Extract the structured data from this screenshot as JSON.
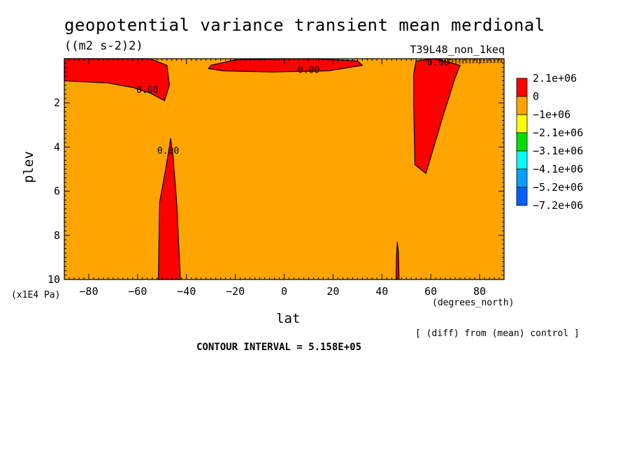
{
  "figure": {
    "title": "geopotential variance transient mean merdional",
    "units": "((m2 s-2)2)",
    "run": "T39L48_non_1keq",
    "x_unit": "(degrees_north)",
    "y_unit": "(x1E4 Pa)",
    "xlabel": "lat",
    "ylabel": "plev",
    "diff_note": "[ (diff) from (mean) control ]",
    "contour_interval": "CONTOUR INTERVAL = 5.158E+05"
  },
  "chart_data": {
    "type": "heatmap",
    "title": "geopotential variance transient mean merdional",
    "xlabel": "lat",
    "ylabel": "plev",
    "xlim": [
      -90,
      90
    ],
    "ylim": [
      0,
      10
    ],
    "y_inverted": true,
    "x_ticks": [
      -80,
      -60,
      -40,
      -20,
      0,
      20,
      40,
      60,
      80
    ],
    "x_tick_labels": [
      "−80",
      "−60",
      "−40",
      "−20",
      "0",
      "20",
      "40",
      "60",
      "80"
    ],
    "y_ticks": [
      2,
      4,
      6,
      8,
      10
    ],
    "y_tick_labels": [
      "2",
      "4",
      "6",
      "8",
      "10"
    ],
    "background_level": "0",
    "background_color": "#ffa500",
    "legend": [
      {
        "label": "2.1e+06",
        "color": "#ff0000"
      },
      {
        "label": "0",
        "color": "#ffa500"
      },
      {
        "label": "−1e+06",
        "color": "#ffff00"
      },
      {
        "label": "−2.1e+06",
        "color": "#00e000"
      },
      {
        "label": "−3.1e+06",
        "color": "#00ffff"
      },
      {
        "label": "−4.1e+06",
        "color": "#00a0ff"
      },
      {
        "label": "−5.2e+06",
        "color": "#0060ff"
      },
      {
        "label": "−7.2e+06",
        "color": ""
      }
    ],
    "legend_placement": "right",
    "regions": [
      {
        "name": "positive-region-upper-left",
        "color": "#ff0000",
        "points": [
          [
            -90,
            0.0
          ],
          [
            -55,
            0.0
          ],
          [
            -48,
            0.3
          ],
          [
            -47,
            1.2
          ],
          [
            -49,
            1.9
          ],
          [
            -55,
            1.55
          ],
          [
            -62,
            1.3
          ],
          [
            -72,
            1.1
          ],
          [
            -90,
            1.0
          ]
        ]
      },
      {
        "name": "positive-region-upper-center",
        "color": "#ff0000",
        "points": [
          [
            -30,
            0.3
          ],
          [
            -20,
            0.05
          ],
          [
            10,
            0.0
          ],
          [
            30,
            0.1
          ],
          [
            32,
            0.3
          ],
          [
            18,
            0.55
          ],
          [
            -5,
            0.6
          ],
          [
            -25,
            0.55
          ],
          [
            -31,
            0.45
          ]
        ]
      },
      {
        "name": "positive-region-upper-right",
        "color": "#ff0000",
        "points": [
          [
            54,
            0.1
          ],
          [
            62,
            0.0
          ],
          [
            72,
            0.3
          ],
          [
            70,
            0.85
          ],
          [
            65,
            2.6
          ],
          [
            58,
            5.2
          ],
          [
            53.5,
            4.8
          ],
          [
            53,
            2.0
          ],
          [
            53,
            0.7
          ]
        ]
      },
      {
        "name": "positive-region-lower-left",
        "color": "#ff0000",
        "points": [
          [
            -46.5,
            3.6
          ],
          [
            -45.5,
            4.4
          ],
          [
            -44,
            6.5
          ],
          [
            -42.5,
            10.0
          ],
          [
            -51.5,
            10.0
          ],
          [
            -51,
            6.5
          ],
          [
            -49,
            5.3
          ],
          [
            -47,
            4.0
          ]
        ]
      },
      {
        "name": "positive-region-lower-right",
        "color": "#ff0000",
        "points": [
          [
            46.3,
            8.3
          ],
          [
            46.8,
            8.8
          ],
          [
            47,
            10.0
          ],
          [
            45.8,
            10.0
          ],
          [
            46,
            8.9
          ]
        ]
      }
    ],
    "contour_labels": [
      {
        "text": "0.00",
        "x": -56,
        "y": 1.55
      },
      {
        "text": "0.00",
        "x": 10,
        "y": 0.65
      },
      {
        "text": "0.00",
        "x": 63,
        "y": 0.3
      },
      {
        "text": "0.00",
        "x": -47.5,
        "y": 4.3
      }
    ]
  }
}
